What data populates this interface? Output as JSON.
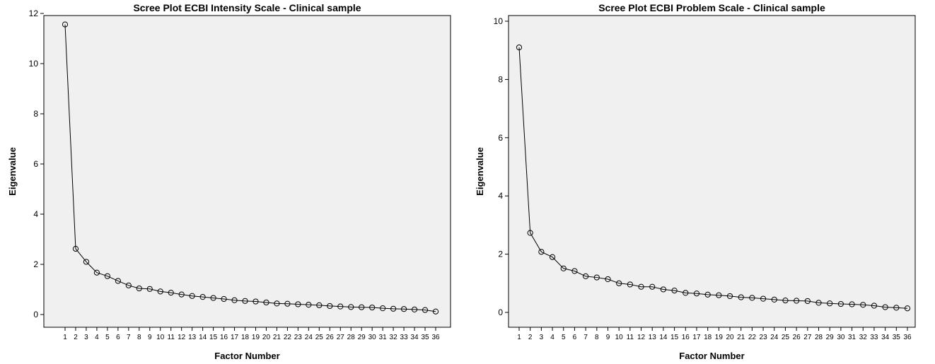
{
  "chart_data": [
    {
      "type": "line",
      "title": "Scree Plot ECBI Intensity Scale - Clinical sample",
      "xlabel": "Factor Number",
      "ylabel": "Eigenvalue",
      "ylim": [
        0,
        12
      ],
      "yticks": [
        0,
        2,
        4,
        6,
        8,
        10,
        12
      ],
      "grid": false,
      "x": [
        1,
        2,
        3,
        4,
        5,
        6,
        7,
        8,
        9,
        10,
        11,
        12,
        13,
        14,
        15,
        16,
        17,
        18,
        19,
        20,
        21,
        22,
        23,
        24,
        25,
        26,
        27,
        28,
        29,
        30,
        31,
        32,
        33,
        34,
        35,
        36
      ],
      "series": [
        {
          "values": [
            11.56,
            2.62,
            2.1,
            1.67,
            1.53,
            1.34,
            1.16,
            1.04,
            1.02,
            0.92,
            0.87,
            0.8,
            0.74,
            0.7,
            0.66,
            0.62,
            0.57,
            0.54,
            0.52,
            0.48,
            0.44,
            0.43,
            0.41,
            0.39,
            0.37,
            0.34,
            0.32,
            0.3,
            0.29,
            0.28,
            0.25,
            0.23,
            0.22,
            0.2,
            0.18,
            0.12
          ],
          "marker": "open-circle",
          "color": "#000000"
        }
      ]
    },
    {
      "type": "line",
      "title": "Scree Plot ECBI Problem Scale - Clinical sample",
      "xlabel": "Factor Number",
      "ylabel": "Eigenvalue",
      "ylim": [
        0,
        10
      ],
      "yticks": [
        0,
        2,
        4,
        6,
        8,
        10
      ],
      "grid": false,
      "x": [
        1,
        2,
        3,
        4,
        5,
        6,
        7,
        8,
        9,
        10,
        11,
        12,
        13,
        14,
        15,
        16,
        17,
        18,
        19,
        20,
        21,
        22,
        23,
        24,
        25,
        26,
        27,
        28,
        29,
        30,
        31,
        32,
        33,
        34,
        35,
        36
      ],
      "series": [
        {
          "values": [
            9.1,
            2.73,
            2.08,
            1.9,
            1.51,
            1.42,
            1.24,
            1.2,
            1.14,
            1.0,
            0.96,
            0.88,
            0.88,
            0.79,
            0.75,
            0.67,
            0.65,
            0.61,
            0.59,
            0.56,
            0.52,
            0.5,
            0.47,
            0.44,
            0.41,
            0.4,
            0.39,
            0.33,
            0.31,
            0.29,
            0.28,
            0.26,
            0.23,
            0.18,
            0.16,
            0.14
          ],
          "marker": "open-circle",
          "color": "#000000"
        }
      ]
    }
  ],
  "plot_background": "#f0f0f0"
}
